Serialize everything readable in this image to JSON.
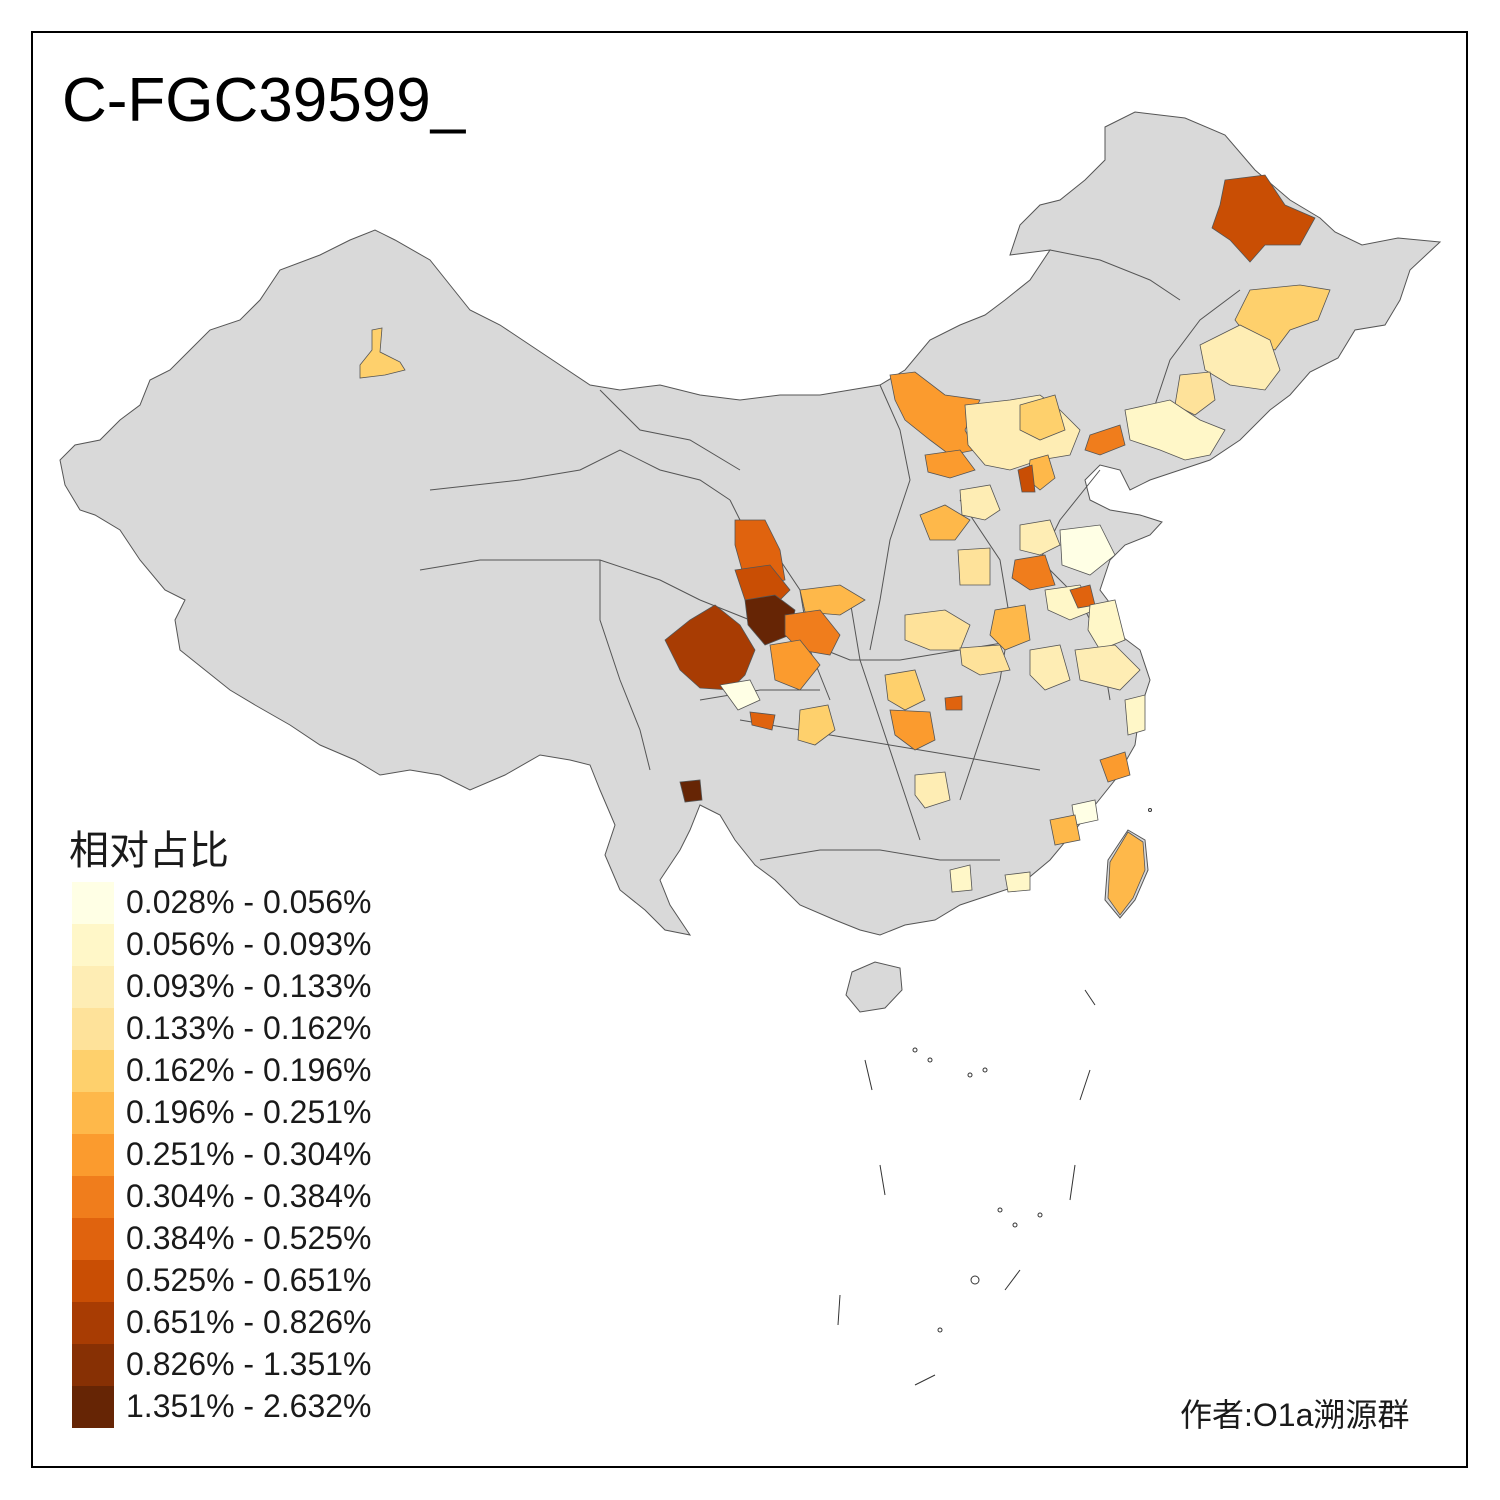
{
  "title": "C-FGC39599_",
  "legend": {
    "title": "相对占比",
    "items": [
      {
        "label": "0.028% - 0.056%",
        "color": "#FFFFE5"
      },
      {
        "label": "0.056% - 0.093%",
        "color": "#FFF7C8"
      },
      {
        "label": "0.093% - 0.133%",
        "color": "#FEEDB4"
      },
      {
        "label": "0.133% - 0.162%",
        "color": "#FEE29A"
      },
      {
        "label": "0.162% - 0.196%",
        "color": "#FED06C"
      },
      {
        "label": "0.196% - 0.251%",
        "color": "#FEB84A"
      },
      {
        "label": "0.251% - 0.304%",
        "color": "#FB9B2E"
      },
      {
        "label": "0.304% - 0.384%",
        "color": "#F07D1C"
      },
      {
        "label": "0.384% - 0.525%",
        "color": "#E0630E"
      },
      {
        "label": "0.525% - 0.651%",
        "color": "#C94E04"
      },
      {
        "label": "0.651% - 0.826%",
        "color": "#A83C03"
      },
      {
        "label": "0.826% - 1.351%",
        "color": "#873004"
      },
      {
        "label": "1.351% - 2.632%",
        "color": "#662505"
      }
    ]
  },
  "credit": "作者:O1a溯源群",
  "base_color": "#D9D9D9",
  "border_color": "#555555"
}
